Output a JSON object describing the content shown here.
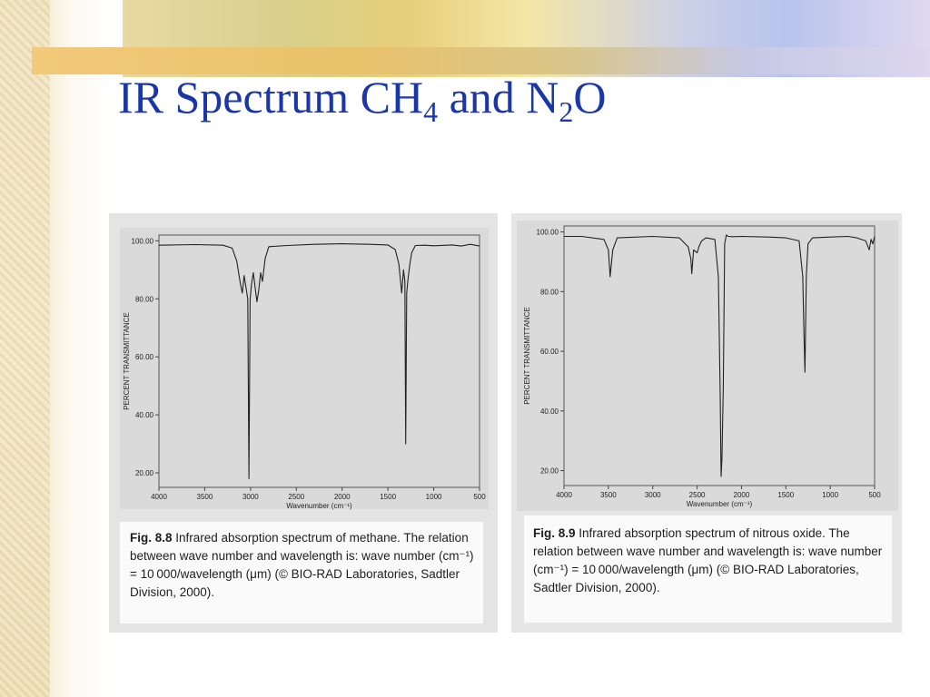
{
  "slide": {
    "title_parts": [
      "IR Spectrum CH",
      "4",
      " and N",
      "2",
      "O"
    ]
  },
  "chart_data": [
    {
      "type": "line",
      "title": "",
      "xlabel": "Wavenumber (cm⁻¹)",
      "ylabel": "PERCENT TRANSMITTANCE",
      "xlim": [
        4000,
        500
      ],
      "ylim": [
        15,
        102
      ],
      "x_ticks": [
        "4000",
        "3500",
        "3000",
        "2500",
        "2000",
        "1500",
        "1000",
        "500"
      ],
      "y_ticks": [
        "20.00",
        "40.00",
        "60.00",
        "80.00",
        "100.00"
      ],
      "x_tick_values": [
        4000,
        3500,
        3000,
        2500,
        2000,
        1500,
        1000,
        500
      ],
      "y_tick_values": [
        20,
        40,
        60,
        80,
        100
      ],
      "series": [
        {
          "color": "#222222",
          "x": [
            4000,
            3600,
            3300,
            3200,
            3150,
            3110,
            3090,
            3070,
            3050,
            3030,
            3017,
            3005,
            2990,
            2970,
            2950,
            2930,
            2910,
            2890,
            2870,
            2840,
            2800,
            2600,
            2300,
            2000,
            1700,
            1500,
            1420,
            1380,
            1350,
            1330,
            1315,
            1306,
            1295,
            1280,
            1260,
            1240,
            1200,
            1100,
            1000,
            800,
            700,
            600,
            500
          ],
          "y": [
            98.5,
            98.7,
            98.5,
            97.5,
            93,
            85,
            82,
            88,
            84,
            80,
            18,
            80,
            85,
            89,
            84,
            79,
            83,
            89,
            86,
            94,
            98,
            98.4,
            98.8,
            99,
            98.8,
            98.6,
            97,
            92,
            82,
            90,
            86,
            30,
            82,
            87,
            92,
            96,
            98.4,
            98.5,
            98.3,
            98.6,
            98.2,
            98.8,
            98.2
          ]
        }
      ],
      "caption": {
        "label": "Fig. 8.8",
        "text": " Infrared absorption spectrum of methane. The relation between wave number and wavelength is: wave number (cm⁻¹) = 10 000/wavelength (μm) (© BIO-RAD Laboratories, Sadtler Division, 2000)."
      }
    },
    {
      "type": "line",
      "title": "",
      "xlabel": "Wavenumber (cm⁻¹)",
      "ylabel": "PERCENT TRANSMITTANCE",
      "xlim": [
        4000,
        500
      ],
      "ylim": [
        15,
        102
      ],
      "x_ticks": [
        "4000",
        "3500",
        "3000",
        "2500",
        "2000",
        "1500",
        "1000",
        "500"
      ],
      "y_ticks": [
        "20.00",
        "40.00",
        "60.00",
        "80.00",
        "100.00"
      ],
      "x_tick_values": [
        4000,
        3500,
        3000,
        2500,
        2000,
        1500,
        1000,
        500
      ],
      "y_tick_values": [
        20,
        40,
        60,
        80,
        100
      ],
      "series": [
        {
          "color": "#222222",
          "x": [
            4000,
            3800,
            3550,
            3500,
            3480,
            3450,
            3400,
            3000,
            2700,
            2600,
            2570,
            2560,
            2540,
            2500,
            2480,
            2450,
            2400,
            2300,
            2260,
            2240,
            2230,
            2220,
            2205,
            2190,
            2170,
            2150,
            2100,
            2000,
            1700,
            1500,
            1350,
            1310,
            1295,
            1285,
            1270,
            1250,
            1200,
            1000,
            800,
            700,
            600,
            560,
            540,
            520,
            500
          ],
          "y": [
            98.5,
            98.5,
            97.5,
            94,
            85,
            94,
            98,
            98.5,
            98,
            95,
            91,
            86,
            94,
            93,
            95,
            97,
            98,
            97.5,
            85,
            45,
            18,
            24,
            48,
            96,
            99,
            98.5,
            98.4,
            98.5,
            98.3,
            98,
            97,
            85,
            65,
            53,
            85,
            96,
            98,
            98.3,
            98.5,
            98,
            97,
            94,
            97.5,
            96,
            98.5
          ]
        }
      ],
      "caption": {
        "label": "Fig. 8.9",
        "text": " Infrared absorption spectrum of nitrous oxide. The relation between wave number and wavelength is: wave number (cm⁻¹) = 10 000/wavelength (μm) (© BIO-RAD Laboratories, Sadtler Division, 2000)."
      }
    }
  ]
}
